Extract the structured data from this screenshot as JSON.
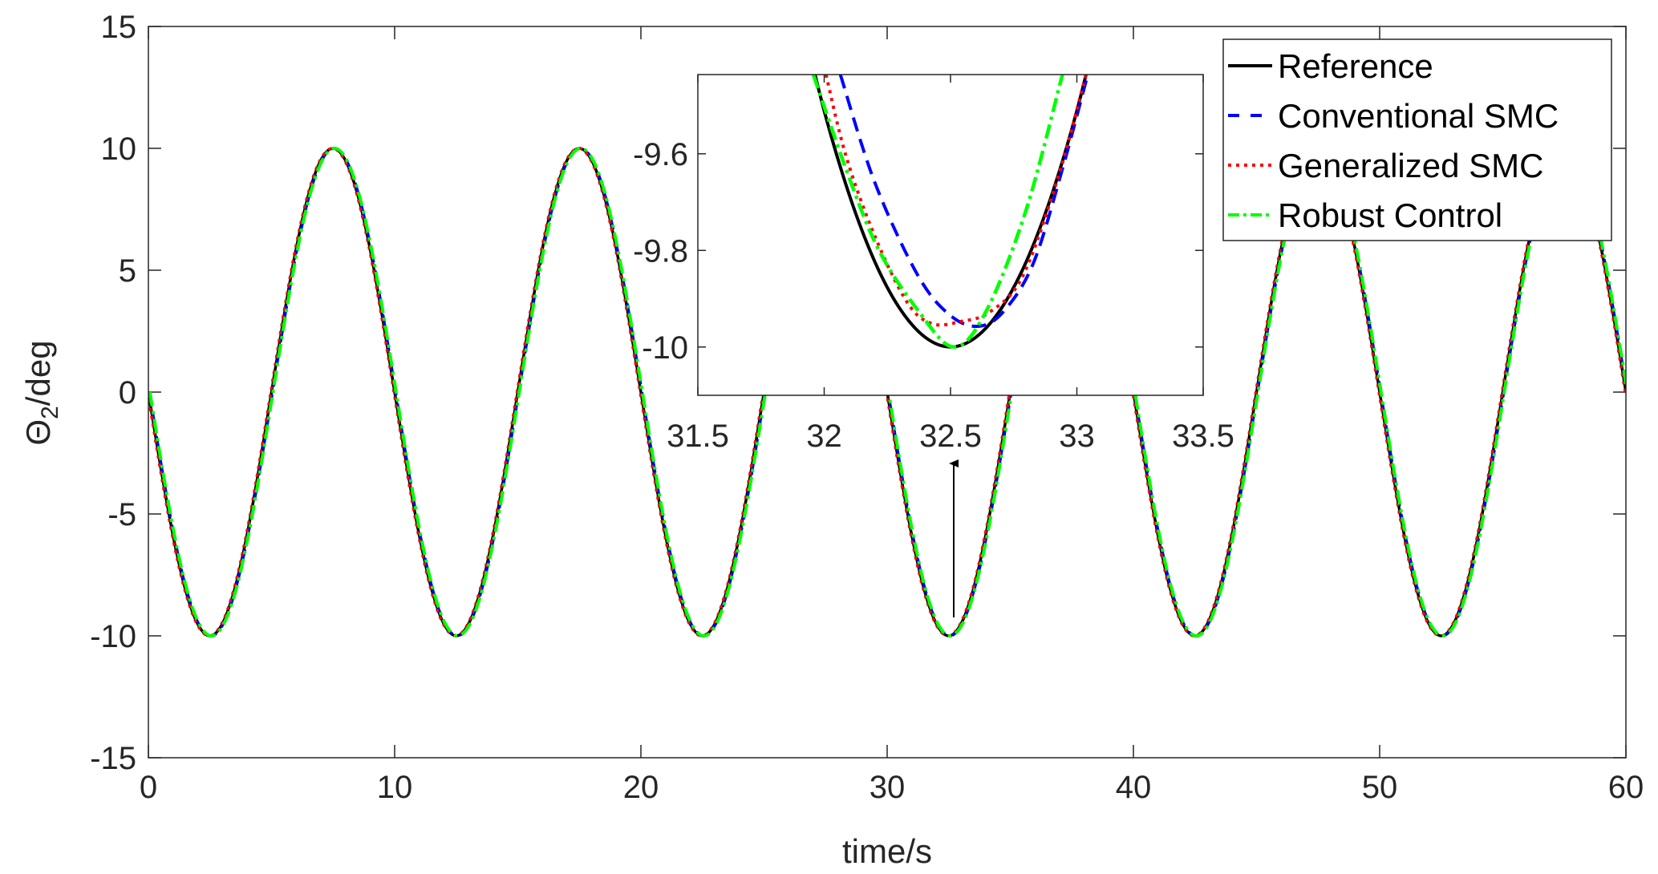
{
  "chart_data": {
    "type": "line",
    "xlabel": "time/s",
    "ylabel_main": "Θ",
    "ylabel_sub": "2",
    "ylabel_rest": "/deg",
    "xlim": [
      0,
      60
    ],
    "ylim": [
      -15,
      15
    ],
    "xticks": [
      0,
      10,
      20,
      30,
      40,
      50,
      60
    ],
    "yticks": [
      -15,
      -10,
      -5,
      0,
      5,
      10,
      15
    ],
    "xtick_labels": [
      "0",
      "10",
      "20",
      "30",
      "40",
      "50",
      "60"
    ],
    "ytick_labels": [
      "-15",
      "-10",
      "-5",
      "0",
      "5",
      "10",
      "15"
    ],
    "grid": false,
    "legend_position": "top-right",
    "series": [
      {
        "name": "Reference",
        "color": "#000000",
        "style": "solid"
      },
      {
        "name": "Conventional SMC",
        "color": "#0000ff",
        "style": "dashed"
      },
      {
        "name": "Generalized SMC",
        "color": "#ff0000",
        "style": "dotted"
      },
      {
        "name": "Robust Control",
        "color": "#00ff00",
        "style": "dash-dot"
      }
    ],
    "x_step": 0.5,
    "main_values_all_series": [
      0,
      -3.09,
      -5.88,
      -8.09,
      -9.51,
      -10,
      -9.51,
      -8.09,
      -5.88,
      -3.09,
      0,
      3.09,
      5.88,
      8.09,
      9.51,
      10,
      9.51,
      8.09,
      5.88,
      3.09,
      0,
      -3.09,
      -5.88,
      -8.09,
      -9.51,
      -10,
      -9.51,
      -8.09,
      -5.88,
      -3.09,
      0,
      3.09,
      5.88,
      8.09,
      9.51,
      10,
      9.51,
      8.09,
      5.88,
      3.09,
      0,
      -3.09,
      -5.88,
      -8.09,
      -9.51,
      -10,
      -9.51,
      -8.09,
      -5.88,
      -3.09,
      0,
      3.09,
      5.88,
      8.09,
      9.51,
      10,
      9.51,
      8.09,
      5.88,
      3.09,
      0,
      -3.09,
      -5.88,
      -8.09,
      -9.51,
      -10,
      -9.51,
      -8.09,
      -5.88,
      -3.09,
      0,
      3.09,
      5.88,
      8.09,
      9.51,
      10,
      9.51,
      8.09,
      5.88,
      3.09,
      0,
      -3.09,
      -5.88,
      -8.09,
      -9.51,
      -10,
      -9.51,
      -8.09,
      -5.88,
      -3.09,
      0,
      3.09,
      5.88,
      8.09,
      9.51,
      10,
      9.51,
      8.09,
      5.88,
      3.09,
      0,
      -3.09,
      -5.88,
      -8.09,
      -9.51,
      -10,
      -9.51,
      -8.09,
      -5.88,
      -3.09,
      0,
      3.09,
      5.88,
      8.09,
      9.51,
      10,
      9.51,
      8.09,
      5.88,
      3.09,
      0
    ],
    "inset": {
      "xlim": [
        31.5,
        33.5
      ],
      "ylim": [
        -10.1,
        -9.436
      ],
      "xticks": [
        31.5,
        32,
        32.5,
        33,
        33.5
      ],
      "yticks": [
        -9.6,
        -9.8,
        -10
      ],
      "xtick_labels": [
        "31.5",
        "32",
        "32.5",
        "33",
        "33.5"
      ],
      "ytick_labels": [
        "-9.6",
        "-9.8",
        "-10"
      ],
      "series": [
        {
          "name": "Reference",
          "x": [
            31.9,
            32.0,
            32.1,
            32.2,
            32.3,
            32.4,
            32.5,
            32.6,
            32.7,
            32.8,
            32.9,
            33.0,
            33.1
          ],
          "y": [
            -9.298,
            -9.511,
            -9.686,
            -9.823,
            -9.921,
            -9.98,
            -10,
            -9.98,
            -9.921,
            -9.823,
            -9.686,
            -9.511,
            -9.298
          ]
        },
        {
          "name": "Conventional SMC",
          "x": [
            32.064,
            32.2,
            32.371,
            32.5,
            32.614,
            32.714,
            32.829,
            32.943,
            33.043
          ],
          "y": [
            -9.436,
            -9.659,
            -9.852,
            -9.935,
            -9.957,
            -9.924,
            -9.825,
            -9.631,
            -9.436
          ]
        },
        {
          "name": "Generalized SMC",
          "x": [
            32.007,
            32.086,
            32.2,
            32.329,
            32.429,
            32.543,
            32.657,
            32.786,
            32.929,
            33.036
          ],
          "y": [
            -9.436,
            -9.604,
            -9.77,
            -9.908,
            -9.952,
            -9.947,
            -9.927,
            -9.853,
            -9.643,
            -9.436
          ]
        },
        {
          "name": "Robust Control",
          "x": [
            31.957,
            32.086,
            32.214,
            32.371,
            32.514,
            32.643,
            32.8,
            32.943
          ],
          "y": [
            -9.436,
            -9.631,
            -9.797,
            -9.924,
            -10,
            -9.924,
            -9.715,
            -9.436
          ]
        }
      ]
    },
    "annotation": "arrow pointing from the minimum at t=32.5 to the inset"
  }
}
